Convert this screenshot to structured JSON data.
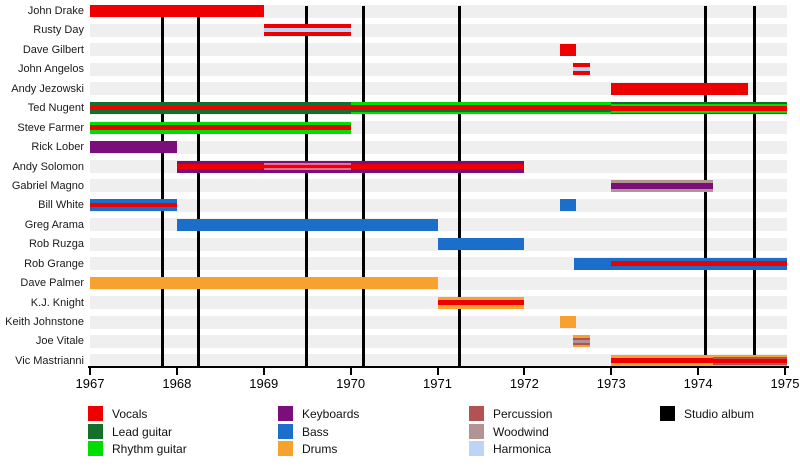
{
  "chart_data": {
    "type": "timeline",
    "description": "Band members timeline chart: horizontal tenure bars per member (1967-1975), striped by instrument role; vertical black lines mark studio albums.",
    "x_axis": {
      "min": 1967,
      "max": 1975,
      "ticks": [
        1967,
        1968,
        1969,
        1970,
        1971,
        1972,
        1973,
        1974,
        1975
      ]
    },
    "colors": {
      "vocals": "#ee0000",
      "lead_guitar": "#156f2c",
      "rhythm_guitar": "#00dd00",
      "keyboards": "#7c0e7c",
      "bass": "#1b6ec9",
      "drums": "#f7a22e",
      "percussion": "#b25252",
      "woodwind": "#b39494",
      "harmonica": "#bcd4f6",
      "vocals_light": "#f16d90",
      "studio_album": "#000000",
      "row_band": "#efefef"
    },
    "albums": [
      1967.83,
      1968.25,
      1969.49,
      1970.15,
      1971.25,
      1974.08,
      1974.65
    ],
    "members": [
      {
        "name": "John Drake",
        "segments": [
          {
            "start": 1967,
            "end": 1969,
            "layout": [
              [
                "vocals",
                12
              ]
            ]
          }
        ]
      },
      {
        "name": "Rusty Day",
        "segments": [
          {
            "start": 1969,
            "end": 1970,
            "layout": [
              [
                "vocals",
                4
              ],
              [
                "harmonica",
                4
              ],
              [
                "vocals",
                4
              ]
            ]
          }
        ]
      },
      {
        "name": "Dave Gilbert",
        "segments": [
          {
            "start": 1972.41,
            "end": 1972.59,
            "layout": [
              [
                "vocals",
                12
              ]
            ]
          }
        ]
      },
      {
        "name": "John Angelos",
        "segments": [
          {
            "start": 1972.56,
            "end": 1972.76,
            "layout": [
              [
                "vocals",
                4
              ],
              [
                "harmonica",
                4
              ],
              [
                "vocals",
                4
              ]
            ]
          }
        ]
      },
      {
        "name": "Andy Jezowski",
        "segments": [
          {
            "start": 1973,
            "end": 1974.57,
            "layout": [
              [
                "vocals",
                12
              ]
            ]
          }
        ]
      },
      {
        "name": "Ted Nugent",
        "segments": [
          {
            "start": 1967,
            "end": 1970,
            "layout": [
              [
                "lead_guitar",
                4
              ],
              [
                "vocals",
                4
              ],
              [
                "lead_guitar",
                4
              ]
            ]
          },
          {
            "start": 1970,
            "end": 1973,
            "layout": [
              [
                "rhythm_guitar",
                2.5
              ],
              [
                "lead_guitar",
                1.5
              ],
              [
                "vocals",
                4
              ],
              [
                "lead_guitar",
                1.5
              ],
              [
                "rhythm_guitar",
                2.5
              ]
            ]
          },
          {
            "start": 1973,
            "end": 1975.02,
            "layout": [
              [
                "lead_guitar",
                1.5
              ],
              [
                "rhythm_guitar",
                2
              ],
              [
                "vocals",
                5
              ],
              [
                "rhythm_guitar",
                2
              ],
              [
                "lead_guitar",
                1.5
              ]
            ]
          }
        ]
      },
      {
        "name": "Steve Farmer",
        "segments": [
          {
            "start": 1967,
            "end": 1970,
            "layout": [
              [
                "rhythm_guitar",
                3.5
              ],
              [
                "vocals",
                5
              ],
              [
                "rhythm_guitar",
                3.5
              ]
            ]
          }
        ]
      },
      {
        "name": "Rick Lober",
        "segments": [
          {
            "start": 1967,
            "end": 1968,
            "layout": [
              [
                "keyboards",
                12
              ]
            ]
          }
        ]
      },
      {
        "name": "Andy Solomon",
        "segments": [
          {
            "start": 1968,
            "end": 1969,
            "layout": [
              [
                "keyboards",
                3.5
              ],
              [
                "vocals",
                5
              ],
              [
                "keyboards",
                3.5
              ]
            ]
          },
          {
            "start": 1969,
            "end": 1970,
            "layout": [
              [
                "keyboards",
                2.5
              ],
              [
                "vocals_light",
                1.8
              ],
              [
                "vocals",
                3.4
              ],
              [
                "vocals_light",
                1.8
              ],
              [
                "keyboards",
                2.5
              ]
            ]
          },
          {
            "start": 1970,
            "end": 1972,
            "layout": [
              [
                "keyboards",
                3.5
              ],
              [
                "vocals",
                5
              ],
              [
                "keyboards",
                3.5
              ]
            ]
          }
        ]
      },
      {
        "name": "Gabriel Magno",
        "segments": [
          {
            "start": 1973,
            "end": 1974.17,
            "layout": [
              [
                "woodwind",
                3
              ],
              [
                "keyboards",
                6
              ],
              [
                "woodwind",
                3
              ]
            ]
          }
        ]
      },
      {
        "name": "Bill White",
        "segments": [
          {
            "start": 1967,
            "end": 1968,
            "layout": [
              [
                "bass",
                4
              ],
              [
                "vocals",
                4
              ],
              [
                "bass",
                4
              ]
            ]
          },
          {
            "start": 1972.41,
            "end": 1972.59,
            "layout": [
              [
                "bass",
                12
              ]
            ]
          }
        ]
      },
      {
        "name": "Greg Arama",
        "segments": [
          {
            "start": 1968,
            "end": 1971,
            "layout": [
              [
                "bass",
                12
              ]
            ]
          }
        ]
      },
      {
        "name": "Rob Ruzga",
        "segments": [
          {
            "start": 1971,
            "end": 1972,
            "layout": [
              [
                "bass",
                12
              ]
            ]
          }
        ]
      },
      {
        "name": "Rob Grange",
        "segments": [
          {
            "start": 1972.57,
            "end": 1973,
            "layout": [
              [
                "bass",
                12
              ]
            ]
          },
          {
            "start": 1973,
            "end": 1975.02,
            "layout": [
              [
                "bass",
                3.5
              ],
              [
                "vocals",
                5
              ],
              [
                "bass",
                3.5
              ]
            ]
          }
        ]
      },
      {
        "name": "Dave Palmer",
        "segments": [
          {
            "start": 1967,
            "end": 1971,
            "layout": [
              [
                "drums",
                12
              ]
            ]
          }
        ]
      },
      {
        "name": "K.J. Knight",
        "segments": [
          {
            "start": 1971,
            "end": 1972,
            "layout": [
              [
                "drums",
                3.5
              ],
              [
                "vocals",
                5
              ],
              [
                "drums",
                3.5
              ]
            ]
          }
        ]
      },
      {
        "name": "Keith Johnstone",
        "segments": [
          {
            "start": 1972.41,
            "end": 1972.59,
            "layout": [
              [
                "drums",
                12
              ]
            ]
          }
        ]
      },
      {
        "name": "Joe Vitale",
        "segments": [
          {
            "start": 1972.56,
            "end": 1972.76,
            "layout": [
              [
                "drums",
                2.5
              ],
              [
                "percussion",
                2
              ],
              [
                "woodwind",
                3
              ],
              [
                "percussion",
                2
              ],
              [
                "drums",
                2.5
              ]
            ]
          }
        ]
      },
      {
        "name": "Vic Mastrianni",
        "segments": [
          {
            "start": 1973,
            "end": 1974.17,
            "layout": [
              [
                "drums",
                3.5
              ],
              [
                "vocals",
                5
              ],
              [
                "drums",
                3.5
              ]
            ]
          },
          {
            "start": 1974.17,
            "end": 1975.02,
            "layout": [
              [
                "drums",
                2
              ],
              [
                "percussion",
                2
              ],
              [
                "vocals",
                4
              ],
              [
                "percussion",
                2
              ],
              [
                "drums",
                2
              ]
            ]
          }
        ]
      }
    ],
    "legend": {
      "position": "bottom",
      "columns": [
        [
          {
            "label": "Vocals",
            "color": "vocals"
          },
          {
            "label": "Lead guitar",
            "color": "lead_guitar"
          },
          {
            "label": "Rhythm guitar",
            "color": "rhythm_guitar"
          }
        ],
        [
          {
            "label": "Keyboards",
            "color": "keyboards"
          },
          {
            "label": "Bass",
            "color": "bass"
          },
          {
            "label": "Drums",
            "color": "drums"
          }
        ],
        [
          {
            "label": "Percussion",
            "color": "percussion"
          },
          {
            "label": "Woodwind",
            "color": "woodwind"
          },
          {
            "label": "Harmonica",
            "color": "harmonica"
          }
        ],
        [
          {
            "label": "Studio album",
            "color": "studio_album"
          }
        ]
      ]
    },
    "grid": false
  }
}
